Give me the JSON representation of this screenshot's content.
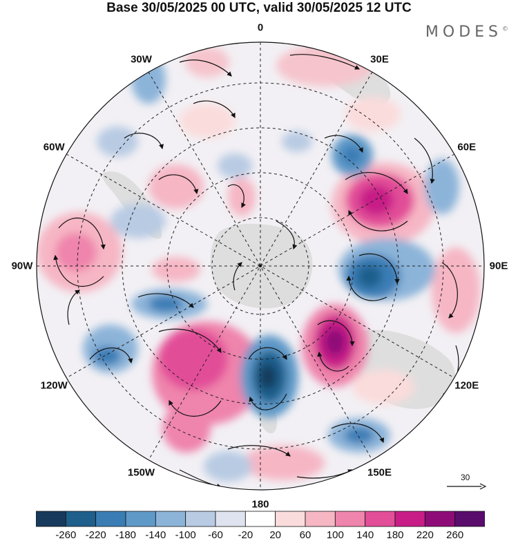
{
  "title": "Base 30/05/2025 00 UTC, valid 30/05/2025 12 UTC",
  "brand": "MODES",
  "brand_mark": "©",
  "longitude_labels": [
    {
      "text": "0",
      "lon": 0
    },
    {
      "text": "30E",
      "lon": 30
    },
    {
      "text": "60E",
      "lon": 60
    },
    {
      "text": "90E",
      "lon": 90
    },
    {
      "text": "120E",
      "lon": 120
    },
    {
      "text": "150E",
      "lon": 150
    },
    {
      "text": "180",
      "lon": 180
    },
    {
      "text": "150W",
      "lon": -150
    },
    {
      "text": "120W",
      "lon": -120
    },
    {
      "text": "90W",
      "lon": -90
    },
    {
      "text": "60W",
      "lon": -60
    },
    {
      "text": "30W",
      "lon": -30
    }
  ],
  "reference_vector": {
    "label": "30"
  },
  "colorbar": {
    "ticks": [
      "-260",
      "-220",
      "-180",
      "-140",
      "-100",
      "-60",
      "-20",
      "20",
      "60",
      "100",
      "140",
      "180",
      "220",
      "260"
    ],
    "colors": [
      "#173a5c",
      "#1e5f8c",
      "#3a7db5",
      "#5f99c8",
      "#8cb4d9",
      "#b8cbe3",
      "#dfe3ef",
      "#ffffff",
      "#fbdcdc",
      "#f6b6c4",
      "#ef84ac",
      "#e24e98",
      "#c81d87",
      "#8e0c78",
      "#5a0c6c"
    ]
  },
  "colors": {
    "land": "#d8d8d8",
    "coast": "#555555",
    "grid": "#222222"
  }
}
